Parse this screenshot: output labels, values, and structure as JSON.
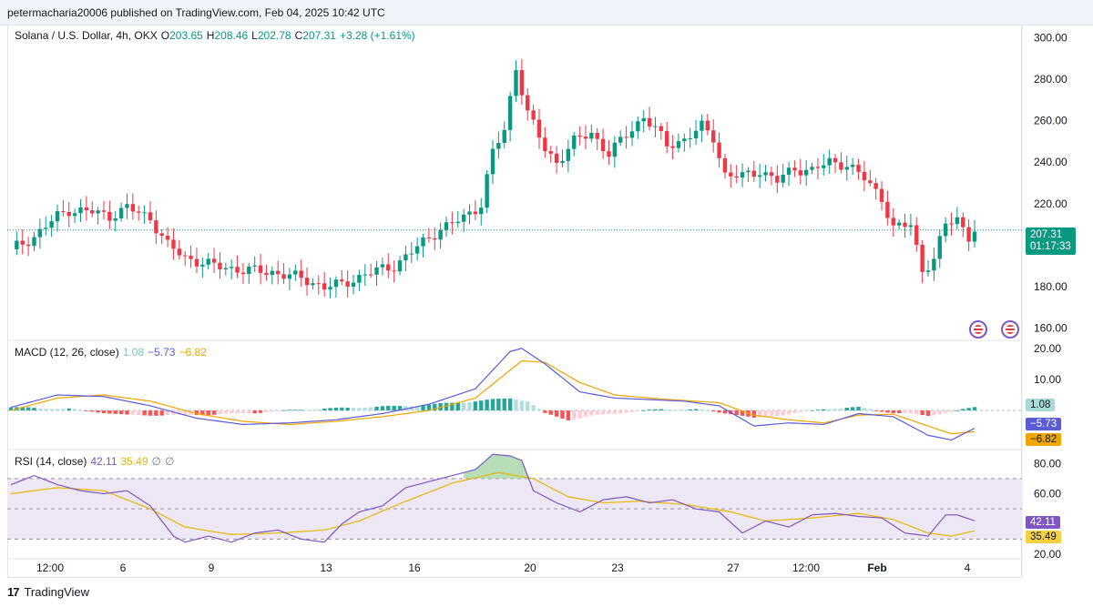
{
  "header": {
    "publish_line": "petermacharia20006 published on TradingView.com, Feb 04, 2025 10:42 UTC"
  },
  "legend": {
    "symbol": "Solana / U.S. Dollar, 4h, OKX",
    "o_key": "O",
    "o_val": "203.65",
    "h_key": "H",
    "h_val": "208.46",
    "l_key": "L",
    "l_val": "202.78",
    "c_key": "C",
    "c_val": "207.31",
    "change": "+3.28 (+1.61%)"
  },
  "macd_legend": {
    "label": "MACD (12, 26, close)",
    "hist": "1.08",
    "macd": "−5.73",
    "signal": "−6.82"
  },
  "rsi_legend": {
    "label": "RSI (14, close)",
    "rsi": "42.11",
    "ma": "35.49",
    "extra1": "∅",
    "extra2": "∅"
  },
  "badges": {
    "price": "207.31",
    "countdown": "01:17:33",
    "macd_hist": "1.08",
    "macd_line": "−5.73",
    "macd_signal": "−6.82",
    "rsi": "42.11",
    "rsi_ma": "35.49"
  },
  "footer": {
    "brand": "TradingView"
  },
  "colors": {
    "up": "#089981",
    "down": "#f23645",
    "macd": "#5b5bd6",
    "signal": "#f0a500",
    "rsi": "#7e57c2",
    "rsi_ma": "#e6b800",
    "rsi_band": "#ede7f6"
  },
  "chart_data": [
    {
      "type": "candlestick",
      "title": "Solana / U.S. Dollar, 4h, OKX",
      "y_ticks": [
        "300.00",
        "280.00",
        "260.00",
        "240.00",
        "220.00",
        "180.00",
        "160.00"
      ],
      "y_tick_values": [
        300,
        280,
        260,
        240,
        220,
        180,
        160
      ],
      "x_ticks": [
        "12:00",
        "6",
        "9",
        "13",
        "16",
        "20",
        "23",
        "27",
        "12:00",
        "Feb",
        "4"
      ],
      "ylim": [
        155,
        305
      ],
      "last_price": 207.31,
      "close_path": [
        [
          0,
          198
        ],
        [
          4,
          204
        ],
        [
          8,
          214
        ],
        [
          10,
          217
        ],
        [
          14,
          216
        ],
        [
          17,
          214
        ],
        [
          20,
          218
        ],
        [
          24,
          213
        ],
        [
          27,
          200
        ],
        [
          30,
          194
        ],
        [
          35,
          190
        ],
        [
          40,
          188
        ],
        [
          45,
          187
        ],
        [
          50,
          184
        ],
        [
          54,
          180
        ],
        [
          57,
          181
        ],
        [
          61,
          186
        ],
        [
          66,
          190
        ],
        [
          70,
          199
        ],
        [
          74,
          208
        ],
        [
          78,
          213
        ],
        [
          81,
          220
        ],
        [
          83,
          245
        ],
        [
          85,
          255
        ],
        [
          87,
          286
        ],
        [
          89,
          264
        ],
        [
          92,
          246
        ],
        [
          94,
          240
        ],
        [
          97,
          250
        ],
        [
          100,
          254
        ],
        [
          103,
          244
        ],
        [
          106,
          253
        ],
        [
          109,
          262
        ],
        [
          111,
          256
        ],
        [
          113,
          248
        ],
        [
          116,
          251
        ],
        [
          119,
          257
        ],
        [
          121,
          252
        ],
        [
          123,
          234
        ],
        [
          126,
          233
        ],
        [
          129,
          236
        ],
        [
          132,
          231
        ],
        [
          135,
          237
        ],
        [
          138,
          236
        ],
        [
          141,
          240
        ],
        [
          144,
          239
        ],
        [
          147,
          232
        ],
        [
          150,
          223
        ],
        [
          152,
          208
        ],
        [
          155,
          210
        ],
        [
          157,
          188
        ],
        [
          159,
          193
        ],
        [
          161,
          210
        ],
        [
          163,
          213
        ],
        [
          165,
          204
        ],
        [
          166,
          207.31
        ]
      ]
    },
    {
      "type": "line",
      "title": "MACD (12, 26, close)",
      "y_ticks": [
        "20.00",
        "10.00"
      ],
      "y_tick_values": [
        20,
        10
      ],
      "ylim": [
        -12,
        22
      ],
      "histogram_last": 1.08,
      "macd_last": -5.73,
      "signal_last": -6.82,
      "series": [
        {
          "name": "MACD",
          "points": [
            [
              0,
              1
            ],
            [
              8,
              5
            ],
            [
              16,
              4.5
            ],
            [
              24,
              1.5
            ],
            [
              32,
              -2.5
            ],
            [
              40,
              -4.5
            ],
            [
              48,
              -4
            ],
            [
              56,
              -3
            ],
            [
              64,
              -1
            ],
            [
              72,
              2
            ],
            [
              80,
              7
            ],
            [
              86,
              19
            ],
            [
              88,
              20
            ],
            [
              92,
              15
            ],
            [
              98,
              6
            ],
            [
              104,
              4
            ],
            [
              110,
              3.5
            ],
            [
              116,
              3
            ],
            [
              122,
              1.5
            ],
            [
              128,
              -5
            ],
            [
              134,
              -4
            ],
            [
              140,
              -4.5
            ],
            [
              146,
              -1
            ],
            [
              152,
              -2
            ],
            [
              158,
              -8
            ],
            [
              162,
              -9.5
            ],
            [
              166,
              -5.73
            ]
          ]
        },
        {
          "name": "Signal",
          "points": [
            [
              0,
              0
            ],
            [
              8,
              4
            ],
            [
              16,
              5
            ],
            [
              24,
              3
            ],
            [
              32,
              -1
            ],
            [
              40,
              -3.5
            ],
            [
              48,
              -4.5
            ],
            [
              56,
              -3.5
            ],
            [
              64,
              -2
            ],
            [
              72,
              0
            ],
            [
              80,
              4
            ],
            [
              88,
              16
            ],
            [
              92,
              15.5
            ],
            [
              98,
              9
            ],
            [
              104,
              5
            ],
            [
              110,
              4
            ],
            [
              116,
              3.2
            ],
            [
              122,
              2.5
            ],
            [
              128,
              -1.5
            ],
            [
              134,
              -3
            ],
            [
              140,
              -4
            ],
            [
              146,
              -1.5
            ],
            [
              152,
              -1.2
            ],
            [
              158,
              -5
            ],
            [
              162,
              -7.5
            ],
            [
              166,
              -6.82
            ]
          ]
        }
      ],
      "histogram": [
        [
          0,
          1
        ],
        [
          10,
          0.5
        ],
        [
          20,
          -1.5
        ],
        [
          30,
          -1.5
        ],
        [
          40,
          -1
        ],
        [
          50,
          0.3
        ],
        [
          60,
          1
        ],
        [
          70,
          1.6
        ],
        [
          80,
          3
        ],
        [
          86,
          4
        ],
        [
          89,
          3
        ],
        [
          92,
          -1
        ],
        [
          96,
          -3
        ],
        [
          100,
          -1.8
        ],
        [
          106,
          -0.6
        ],
        [
          112,
          0.4
        ],
        [
          118,
          0.3
        ],
        [
          124,
          -1
        ],
        [
          128,
          -2.5
        ],
        [
          134,
          -1.2
        ],
        [
          140,
          0.5
        ],
        [
          146,
          1
        ],
        [
          152,
          -0.8
        ],
        [
          158,
          -1.6
        ],
        [
          162,
          -0.5
        ],
        [
          166,
          1.08
        ]
      ]
    },
    {
      "type": "line",
      "title": "RSI (14, close)",
      "y_ticks": [
        "80.00",
        "60.00",
        "20.00"
      ],
      "y_tick_values": [
        80,
        60,
        20
      ],
      "ylim": [
        17,
        88
      ],
      "bands": {
        "upper": 70,
        "middle": 50,
        "lower": 30
      },
      "rsi_last": 42.11,
      "rsi_ma_last": 35.49,
      "series": [
        {
          "name": "RSI",
          "points": [
            [
              0,
              66
            ],
            [
              4,
              72
            ],
            [
              8,
              66
            ],
            [
              12,
              62
            ],
            [
              16,
              60
            ],
            [
              20,
              62
            ],
            [
              24,
              52
            ],
            [
              28,
              32
            ],
            [
              30,
              28
            ],
            [
              34,
              32
            ],
            [
              38,
              28
            ],
            [
              42,
              34
            ],
            [
              46,
              36
            ],
            [
              50,
              30
            ],
            [
              54,
              28
            ],
            [
              57,
              40
            ],
            [
              60,
              48
            ],
            [
              64,
              52
            ],
            [
              68,
              64
            ],
            [
              72,
              68
            ],
            [
              76,
              72
            ],
            [
              80,
              76
            ],
            [
              83,
              86
            ],
            [
              86,
              85
            ],
            [
              88,
              82
            ],
            [
              90,
              62
            ],
            [
              94,
              54
            ],
            [
              98,
              48
            ],
            [
              102,
              56
            ],
            [
              106,
              58
            ],
            [
              110,
              54
            ],
            [
              114,
              56
            ],
            [
              118,
              50
            ],
            [
              122,
              48
            ],
            [
              126,
              34
            ],
            [
              130,
              42
            ],
            [
              134,
              38
            ],
            [
              138,
              46
            ],
            [
              142,
              47
            ],
            [
              146,
              45
            ],
            [
              150,
              44
            ],
            [
              154,
              34
            ],
            [
              158,
              32
            ],
            [
              161,
              46
            ],
            [
              163,
              46
            ],
            [
              166,
              42.11
            ]
          ]
        },
        {
          "name": "RSI MA",
          "points": [
            [
              0,
              60
            ],
            [
              8,
              64
            ],
            [
              16,
              62
            ],
            [
              24,
              50
            ],
            [
              30,
              38
            ],
            [
              38,
              33
            ],
            [
              46,
              34
            ],
            [
              54,
              36
            ],
            [
              60,
              42
            ],
            [
              68,
              55
            ],
            [
              76,
              67
            ],
            [
              84,
              74
            ],
            [
              90,
              70
            ],
            [
              96,
              58
            ],
            [
              102,
              54
            ],
            [
              108,
              55
            ],
            [
              116,
              53
            ],
            [
              124,
              48
            ],
            [
              130,
              42
            ],
            [
              138,
              44
            ],
            [
              146,
              47
            ],
            [
              152,
              43
            ],
            [
              158,
              34
            ],
            [
              162,
              32
            ],
            [
              166,
              35.49
            ]
          ]
        }
      ]
    }
  ]
}
